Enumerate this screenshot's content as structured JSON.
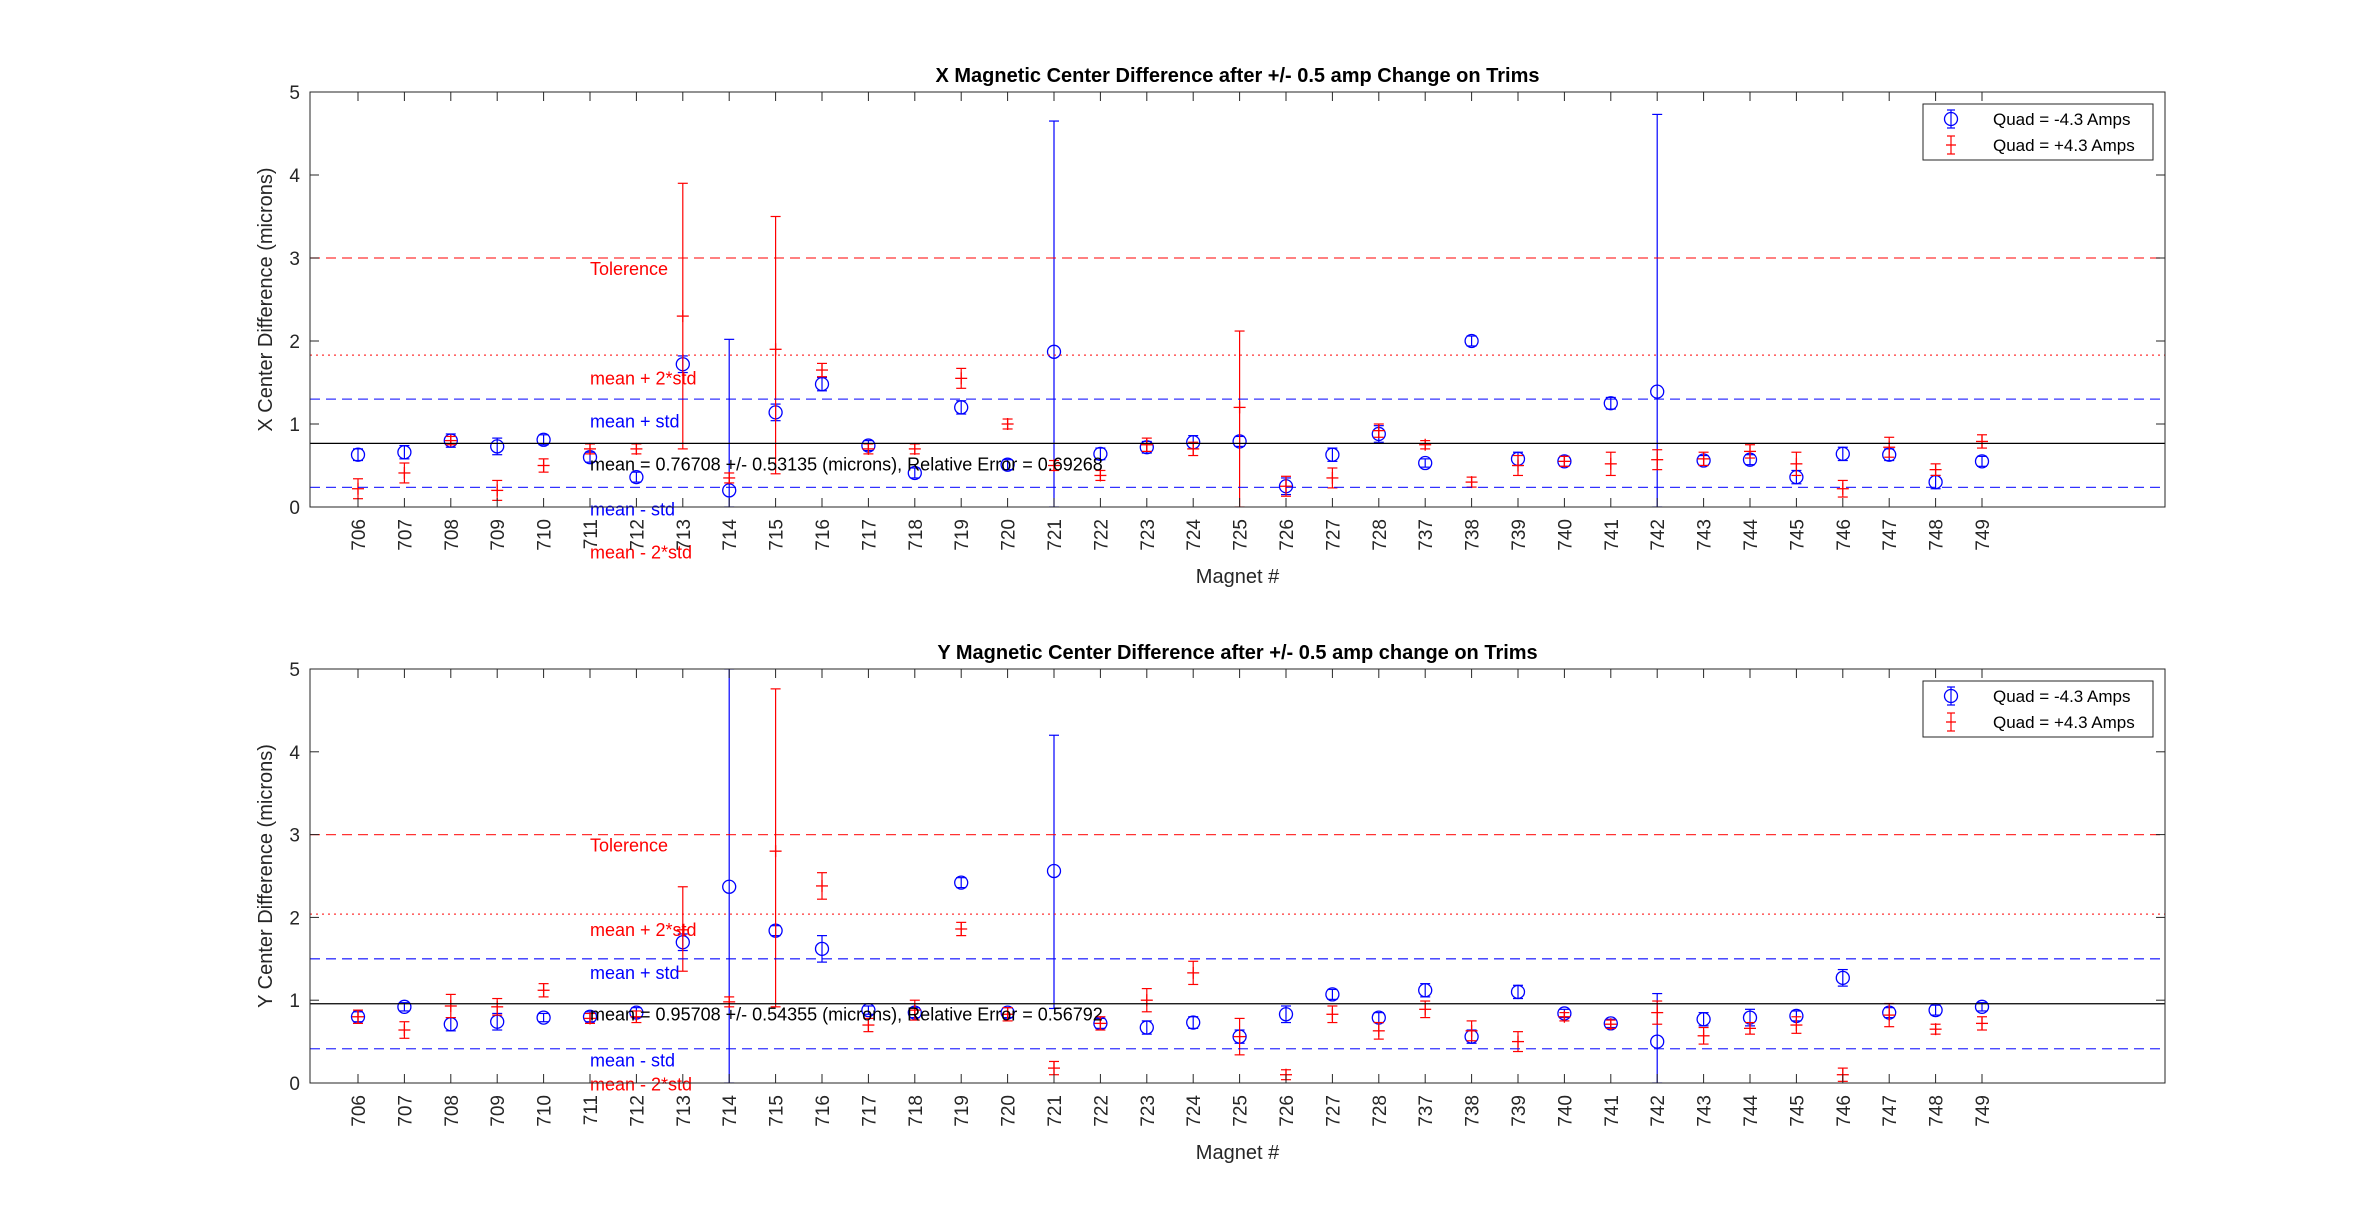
{
  "chart_data": [
    {
      "type": "scatter",
      "title": "X Magnetic Center Difference after +/- 0.5 amp Change on Trims",
      "xlabel": "Magnet #",
      "ylabel": "X Center Difference (microns)",
      "ylim": [
        0,
        5
      ],
      "yticks": [
        "0",
        "1",
        "2",
        "3",
        "4",
        "5"
      ],
      "grid": false,
      "legend_position": "top-right",
      "categories": [
        "706",
        "707",
        "708",
        "709",
        "710",
        "711",
        "712",
        "713",
        "714",
        "715",
        "716",
        "717",
        "718",
        "719",
        "720",
        "721",
        "722",
        "723",
        "724",
        "725",
        "726",
        "727",
        "728",
        "737",
        "738",
        "739",
        "740",
        "741",
        "742",
        "743",
        "744",
        "745",
        "746",
        "747",
        "748",
        "749"
      ],
      "series": [
        {
          "name": "Quad = -4.3 Amps",
          "color": "#0000ff",
          "marker": "circle",
          "values": [
            0.63,
            0.66,
            0.8,
            0.73,
            0.81,
            0.6,
            0.36,
            1.72,
            0.2,
            1.14,
            1.48,
            0.74,
            0.41,
            1.2,
            0.51,
            1.87,
            0.64,
            0.72,
            0.78,
            0.79,
            0.25,
            0.63,
            0.88,
            0.53,
            2.0,
            0.58,
            0.55,
            1.25,
            1.39,
            0.56,
            0.57,
            0.36,
            0.64,
            0.63,
            0.3,
            0.55
          ],
          "err_low": [
            0.07,
            0.08,
            0.08,
            0.1,
            0.06,
            0.06,
            0.06,
            0.1,
            0.2,
            0.1,
            0.08,
            0.06,
            0.06,
            0.08,
            0.06,
            1.87,
            0.07,
            0.07,
            0.08,
            0.06,
            0.1,
            0.08,
            0.1,
            0.05,
            0.06,
            0.08,
            0.06,
            0.07,
            1.39,
            0.06,
            0.06,
            0.08,
            0.08,
            0.07,
            0.08,
            0.06
          ],
          "err_high": [
            0.07,
            0.08,
            0.08,
            0.1,
            0.06,
            0.06,
            0.06,
            0.1,
            1.82,
            0.1,
            0.08,
            0.06,
            0.06,
            0.08,
            0.06,
            2.78,
            0.07,
            0.07,
            0.08,
            0.06,
            0.1,
            0.08,
            0.1,
            0.05,
            0.06,
            0.08,
            0.06,
            0.07,
            3.34,
            0.06,
            0.06,
            0.08,
            0.08,
            0.07,
            0.08,
            0.06
          ]
        },
        {
          "name": "Quad = +4.3 Amps",
          "color": "#ff0000",
          "marker": "plus",
          "values": [
            0.22,
            0.41,
            0.8,
            0.2,
            0.5,
            0.7,
            0.7,
            2.3,
            0.35,
            1.9,
            1.65,
            0.7,
            0.7,
            1.55,
            1.0,
            0.5,
            0.38,
            0.75,
            0.7,
            1.2,
            0.25,
            0.35,
            0.92,
            0.75,
            0.3,
            0.5,
            0.55,
            0.52,
            0.57,
            0.58,
            0.67,
            0.52,
            0.22,
            0.72,
            0.45,
            0.79
          ],
          "err_low": [
            0.12,
            0.12,
            0.05,
            0.12,
            0.08,
            0.06,
            0.06,
            1.6,
            0.06,
            1.5,
            0.08,
            0.06,
            0.06,
            0.12,
            0.06,
            0.06,
            0.06,
            0.08,
            0.08,
            1.2,
            0.12,
            0.12,
            0.08,
            0.05,
            0.06,
            0.12,
            0.06,
            0.14,
            0.12,
            0.08,
            0.08,
            0.14,
            0.1,
            0.12,
            0.07,
            0.08
          ],
          "err_high": [
            0.12,
            0.12,
            0.05,
            0.12,
            0.08,
            0.06,
            0.06,
            1.6,
            0.06,
            1.6,
            0.08,
            0.06,
            0.06,
            0.12,
            0.06,
            0.06,
            0.06,
            0.08,
            0.08,
            0.92,
            0.12,
            0.12,
            0.08,
            0.05,
            0.06,
            0.12,
            0.06,
            0.14,
            0.12,
            0.08,
            0.08,
            0.14,
            0.1,
            0.12,
            0.07,
            0.08
          ]
        }
      ],
      "reference_lines": [
        {
          "y": 3.0,
          "style": "dashed",
          "color": "#ff0000",
          "label": "Tolerence",
          "label_color": "#ff0000",
          "label_y": 2.87
        },
        {
          "y": 1.83,
          "style": "dotted",
          "color": "#ff0000",
          "label": "mean + 2*std",
          "label_color": "#ff0000",
          "label_y": 1.55
        },
        {
          "y": 1.3,
          "style": "dashed",
          "color": "#0000ff",
          "label": "mean + std",
          "label_color": "#0000ff",
          "label_y": 1.03
        },
        {
          "y": 0.767,
          "style": "solid",
          "color": "#000000",
          "label": "mean = 0.76708 +/- 0.53135 (microns), Relative Error = 0.69268",
          "label_color": "#000000",
          "label_y": 0.51
        },
        {
          "y": 0.236,
          "style": "dashed",
          "color": "#0000ff",
          "label": "mean - std",
          "label_color": "#0000ff",
          "label_y": -0.03
        },
        {
          "y": -0.3,
          "style": "dotted",
          "color": "#ff0000",
          "label": "mean - 2*std",
          "label_color": "#ff0000",
          "label_y": -0.55
        }
      ]
    },
    {
      "type": "scatter",
      "title": "Y Magnetic Center Difference after +/- 0.5 amp change on Trims",
      "xlabel": "Magnet #",
      "ylabel": "Y Center Difference (microns)",
      "ylim": [
        0,
        5
      ],
      "yticks": [
        "0",
        "1",
        "2",
        "3",
        "4",
        "5"
      ],
      "grid": false,
      "legend_position": "top-right",
      "categories": [
        "706",
        "707",
        "708",
        "709",
        "710",
        "711",
        "712",
        "713",
        "714",
        "715",
        "716",
        "717",
        "718",
        "719",
        "720",
        "721",
        "722",
        "723",
        "724",
        "725",
        "726",
        "727",
        "728",
        "737",
        "738",
        "739",
        "740",
        "741",
        "742",
        "743",
        "744",
        "745",
        "746",
        "747",
        "748",
        "749"
      ],
      "series": [
        {
          "name": "Quad = -4.3 Amps",
          "color": "#0000ff",
          "marker": "circle",
          "values": [
            0.8,
            0.92,
            0.71,
            0.74,
            0.79,
            0.8,
            0.85,
            1.7,
            2.37,
            1.84,
            1.62,
            0.88,
            0.85,
            2.42,
            0.85,
            2.56,
            0.72,
            0.67,
            0.73,
            0.56,
            0.83,
            1.07,
            0.79,
            1.12,
            0.56,
            1.1,
            0.84,
            0.72,
            0.5,
            0.77,
            0.79,
            0.81,
            1.27,
            0.85,
            0.88,
            0.92
          ],
          "err_low": [
            0.06,
            0.05,
            0.08,
            0.1,
            0.05,
            0.06,
            0.06,
            0.1,
            2.37,
            0.06,
            0.16,
            0.05,
            0.06,
            0.06,
            0.06,
            1.66,
            0.06,
            0.08,
            0.07,
            0.08,
            0.1,
            0.06,
            0.06,
            0.08,
            0.08,
            0.08,
            0.05,
            0.05,
            0.5,
            0.08,
            0.1,
            0.06,
            0.1,
            0.06,
            0.06,
            0.05
          ],
          "err_high": [
            0.06,
            0.05,
            0.08,
            0.1,
            0.05,
            0.06,
            0.06,
            0.1,
            2.63,
            0.06,
            0.16,
            0.05,
            0.06,
            0.06,
            0.06,
            1.64,
            0.06,
            0.08,
            0.07,
            0.08,
            0.1,
            0.06,
            0.06,
            0.08,
            0.08,
            0.08,
            0.05,
            0.05,
            0.58,
            0.08,
            0.1,
            0.06,
            0.1,
            0.06,
            0.06,
            0.05
          ]
        },
        {
          "name": "Quad = +4.3 Amps",
          "color": "#ff0000",
          "marker": "plus",
          "values": [
            0.8,
            0.64,
            0.93,
            0.92,
            1.12,
            0.78,
            0.8,
            1.85,
            0.98,
            2.8,
            2.38,
            0.7,
            0.88,
            1.86,
            0.83,
            0.18,
            0.72,
            1.0,
            1.33,
            0.56,
            0.1,
            0.83,
            0.63,
            0.89,
            0.63,
            0.5,
            0.8,
            0.71,
            0.85,
            0.57,
            0.66,
            0.7,
            0.1,
            0.82,
            0.65,
            0.72
          ],
          "err_low": [
            0.08,
            0.1,
            0.14,
            0.1,
            0.08,
            0.06,
            0.07,
            0.5,
            0.06,
            1.88,
            0.16,
            0.08,
            0.12,
            0.08,
            0.08,
            0.08,
            0.08,
            0.14,
            0.14,
            0.22,
            0.06,
            0.1,
            0.1,
            0.1,
            0.12,
            0.12,
            0.05,
            0.05,
            0.14,
            0.1,
            0.07,
            0.1,
            0.08,
            0.14,
            0.06,
            0.08
          ],
          "err_high": [
            0.08,
            0.1,
            0.14,
            0.1,
            0.08,
            0.06,
            0.07,
            0.52,
            0.06,
            1.96,
            0.16,
            0.08,
            0.12,
            0.08,
            0.08,
            0.08,
            0.08,
            0.14,
            0.14,
            0.22,
            0.06,
            0.1,
            0.1,
            0.1,
            0.12,
            0.12,
            0.05,
            0.05,
            0.14,
            0.1,
            0.07,
            0.1,
            0.08,
            0.14,
            0.06,
            0.08
          ]
        }
      ],
      "reference_lines": [
        {
          "y": 3.0,
          "style": "dashed",
          "color": "#ff0000",
          "label": "Tolerence",
          "label_color": "#ff0000",
          "label_y": 2.87
        },
        {
          "y": 2.04,
          "style": "dotted",
          "color": "#ff0000",
          "label": "mean + 2*std",
          "label_color": "#ff0000",
          "label_y": 1.85
        },
        {
          "y": 1.5,
          "style": "dashed",
          "color": "#0000ff",
          "label": "mean + std",
          "label_color": "#0000ff",
          "label_y": 1.33
        },
        {
          "y": 0.957,
          "style": "solid",
          "color": "#000000",
          "label": "mean = 0.95708 +/- 0.54355 (microns), Relative Error = 0.56792",
          "label_color": "#000000",
          "label_y": 0.83
        },
        {
          "y": 0.414,
          "style": "dashed",
          "color": "#0000ff",
          "label": "mean - std",
          "label_color": "#0000ff",
          "label_y": 0.27
        },
        {
          "y": -0.13,
          "style": "dotted",
          "color": "#ff0000",
          "label": "mean - 2*std",
          "label_color": "#ff0000",
          "label_y": -0.02
        }
      ]
    }
  ]
}
